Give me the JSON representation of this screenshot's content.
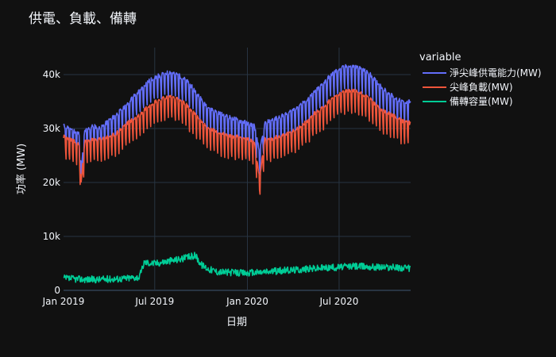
{
  "chart_data": {
    "type": "line",
    "title": "供電、負載、備轉",
    "xlabel": "日期",
    "ylabel": "功率 (MW)",
    "xlim": [
      "2019-01-01",
      "2020-11-20"
    ],
    "ylim": [
      0,
      45000
    ],
    "x_ticks": [
      {
        "date": "2019-01-01",
        "label": "Jan 2019"
      },
      {
        "date": "2019-07-01",
        "label": "Jul 2019"
      },
      {
        "date": "2020-01-01",
        "label": "Jan 2020"
      },
      {
        "date": "2020-07-01",
        "label": "Jul 2020"
      }
    ],
    "y_ticks": [
      {
        "value": 0,
        "label": "0"
      },
      {
        "value": 10000,
        "label": "10k"
      },
      {
        "value": 20000,
        "label": "20k"
      },
      {
        "value": 30000,
        "label": "30k"
      },
      {
        "value": 40000,
        "label": "40k"
      }
    ],
    "grid": true,
    "legend": {
      "title": "variable",
      "placement": "right"
    },
    "series": [
      {
        "name": "淨尖峰供電能力(MW)",
        "color": "#636efa",
        "points": [
          [
            "2019-01-01",
            30500
          ],
          [
            "2019-01-15",
            30000
          ],
          [
            "2019-02-01",
            29000
          ],
          [
            "2019-02-05",
            22000
          ],
          [
            "2019-02-12",
            29500
          ],
          [
            "2019-03-01",
            30500
          ],
          [
            "2019-03-15",
            30000
          ],
          [
            "2019-04-01",
            31500
          ],
          [
            "2019-04-15",
            32500
          ],
          [
            "2019-05-01",
            34000
          ],
          [
            "2019-05-15",
            35500
          ],
          [
            "2019-06-01",
            37000
          ],
          [
            "2019-06-15",
            38500
          ],
          [
            "2019-07-01",
            39500
          ],
          [
            "2019-07-15",
            40000
          ],
          [
            "2019-08-01",
            40500
          ],
          [
            "2019-08-15",
            40000
          ],
          [
            "2019-09-01",
            39000
          ],
          [
            "2019-09-15",
            37500
          ],
          [
            "2019-10-01",
            35500
          ],
          [
            "2019-10-15",
            34000
          ],
          [
            "2019-11-01",
            33000
          ],
          [
            "2019-11-15",
            32500
          ],
          [
            "2019-12-01",
            32000
          ],
          [
            "2019-12-15",
            31500
          ],
          [
            "2020-01-01",
            31000
          ],
          [
            "2020-01-15",
            30500
          ],
          [
            "2020-01-25",
            25500
          ],
          [
            "2020-02-05",
            31000
          ],
          [
            "2020-02-15",
            31500
          ],
          [
            "2020-03-01",
            32000
          ],
          [
            "2020-03-15",
            32500
          ],
          [
            "2020-04-01",
            33500
          ],
          [
            "2020-04-15",
            34500
          ],
          [
            "2020-05-01",
            35500
          ],
          [
            "2020-05-15",
            37000
          ],
          [
            "2020-06-01",
            38500
          ],
          [
            "2020-06-15",
            40000
          ],
          [
            "2020-07-01",
            41000
          ],
          [
            "2020-07-15",
            41500
          ],
          [
            "2020-08-01",
            41500
          ],
          [
            "2020-08-15",
            41000
          ],
          [
            "2020-09-01",
            40000
          ],
          [
            "2020-09-15",
            38500
          ],
          [
            "2020-10-01",
            37000
          ],
          [
            "2020-10-15",
            36000
          ],
          [
            "2020-11-01",
            35000
          ],
          [
            "2020-11-20",
            35000
          ]
        ]
      },
      {
        "name": "尖峰負載(MW)",
        "color": "#ef553b",
        "points": [
          [
            "2019-01-01",
            28500
          ],
          [
            "2019-01-15",
            28000
          ],
          [
            "2019-02-01",
            27000
          ],
          [
            "2019-02-05",
            20000
          ],
          [
            "2019-02-12",
            27500
          ],
          [
            "2019-03-01",
            28000
          ],
          [
            "2019-03-15",
            28000
          ],
          [
            "2019-04-01",
            28500
          ],
          [
            "2019-04-15",
            29000
          ],
          [
            "2019-05-01",
            30500
          ],
          [
            "2019-05-15",
            31500
          ],
          [
            "2019-06-01",
            32500
          ],
          [
            "2019-06-15",
            34000
          ],
          [
            "2019-07-01",
            35000
          ],
          [
            "2019-07-15",
            35500
          ],
          [
            "2019-08-01",
            36000
          ],
          [
            "2019-08-15",
            35500
          ],
          [
            "2019-09-01",
            34500
          ],
          [
            "2019-09-15",
            33000
          ],
          [
            "2019-10-01",
            31500
          ],
          [
            "2019-10-15",
            30000
          ],
          [
            "2019-11-01",
            29500
          ],
          [
            "2019-11-15",
            29000
          ],
          [
            "2019-12-01",
            28500
          ],
          [
            "2019-12-15",
            28500
          ],
          [
            "2020-01-01",
            28000
          ],
          [
            "2020-01-15",
            27500
          ],
          [
            "2020-01-25",
            21000
          ],
          [
            "2020-02-05",
            28000
          ],
          [
            "2020-02-15",
            28000
          ],
          [
            "2020-03-01",
            28500
          ],
          [
            "2020-03-15",
            29000
          ],
          [
            "2020-04-01",
            29500
          ],
          [
            "2020-04-15",
            30500
          ],
          [
            "2020-05-01",
            31500
          ],
          [
            "2020-05-15",
            33000
          ],
          [
            "2020-06-01",
            34000
          ],
          [
            "2020-06-15",
            35500
          ],
          [
            "2020-07-01",
            36500
          ],
          [
            "2020-07-15",
            37000
          ],
          [
            "2020-08-01",
            37000
          ],
          [
            "2020-08-15",
            36500
          ],
          [
            "2020-09-01",
            35500
          ],
          [
            "2020-09-15",
            34000
          ],
          [
            "2020-10-01",
            33000
          ],
          [
            "2020-10-15",
            32500
          ],
          [
            "2020-11-01",
            31500
          ],
          [
            "2020-11-20",
            31000
          ]
        ]
      },
      {
        "name": "備轉容量(MW)",
        "color": "#00cc96",
        "points": [
          [
            "2019-01-01",
            2200
          ],
          [
            "2019-02-01",
            2100
          ],
          [
            "2019-03-01",
            2000
          ],
          [
            "2019-04-01",
            2100
          ],
          [
            "2019-05-01",
            2200
          ],
          [
            "2019-06-01",
            2500
          ],
          [
            "2019-06-10",
            5200
          ],
          [
            "2019-07-01",
            5000
          ],
          [
            "2019-08-01",
            5500
          ],
          [
            "2019-09-01",
            6000
          ],
          [
            "2019-09-20",
            6500
          ],
          [
            "2019-10-01",
            4800
          ],
          [
            "2019-10-15",
            4000
          ],
          [
            "2019-11-01",
            3500
          ],
          [
            "2019-12-01",
            3300
          ],
          [
            "2020-01-01",
            3200
          ],
          [
            "2020-02-01",
            3400
          ],
          [
            "2020-03-01",
            3600
          ],
          [
            "2020-04-01",
            3800
          ],
          [
            "2020-05-01",
            4000
          ],
          [
            "2020-06-01",
            4200
          ],
          [
            "2020-07-01",
            4300
          ],
          [
            "2020-08-01",
            4500
          ],
          [
            "2020-09-01",
            4400
          ],
          [
            "2020-10-01",
            4300
          ],
          [
            "2020-11-01",
            4200
          ],
          [
            "2020-11-20",
            4000
          ]
        ]
      }
    ]
  }
}
